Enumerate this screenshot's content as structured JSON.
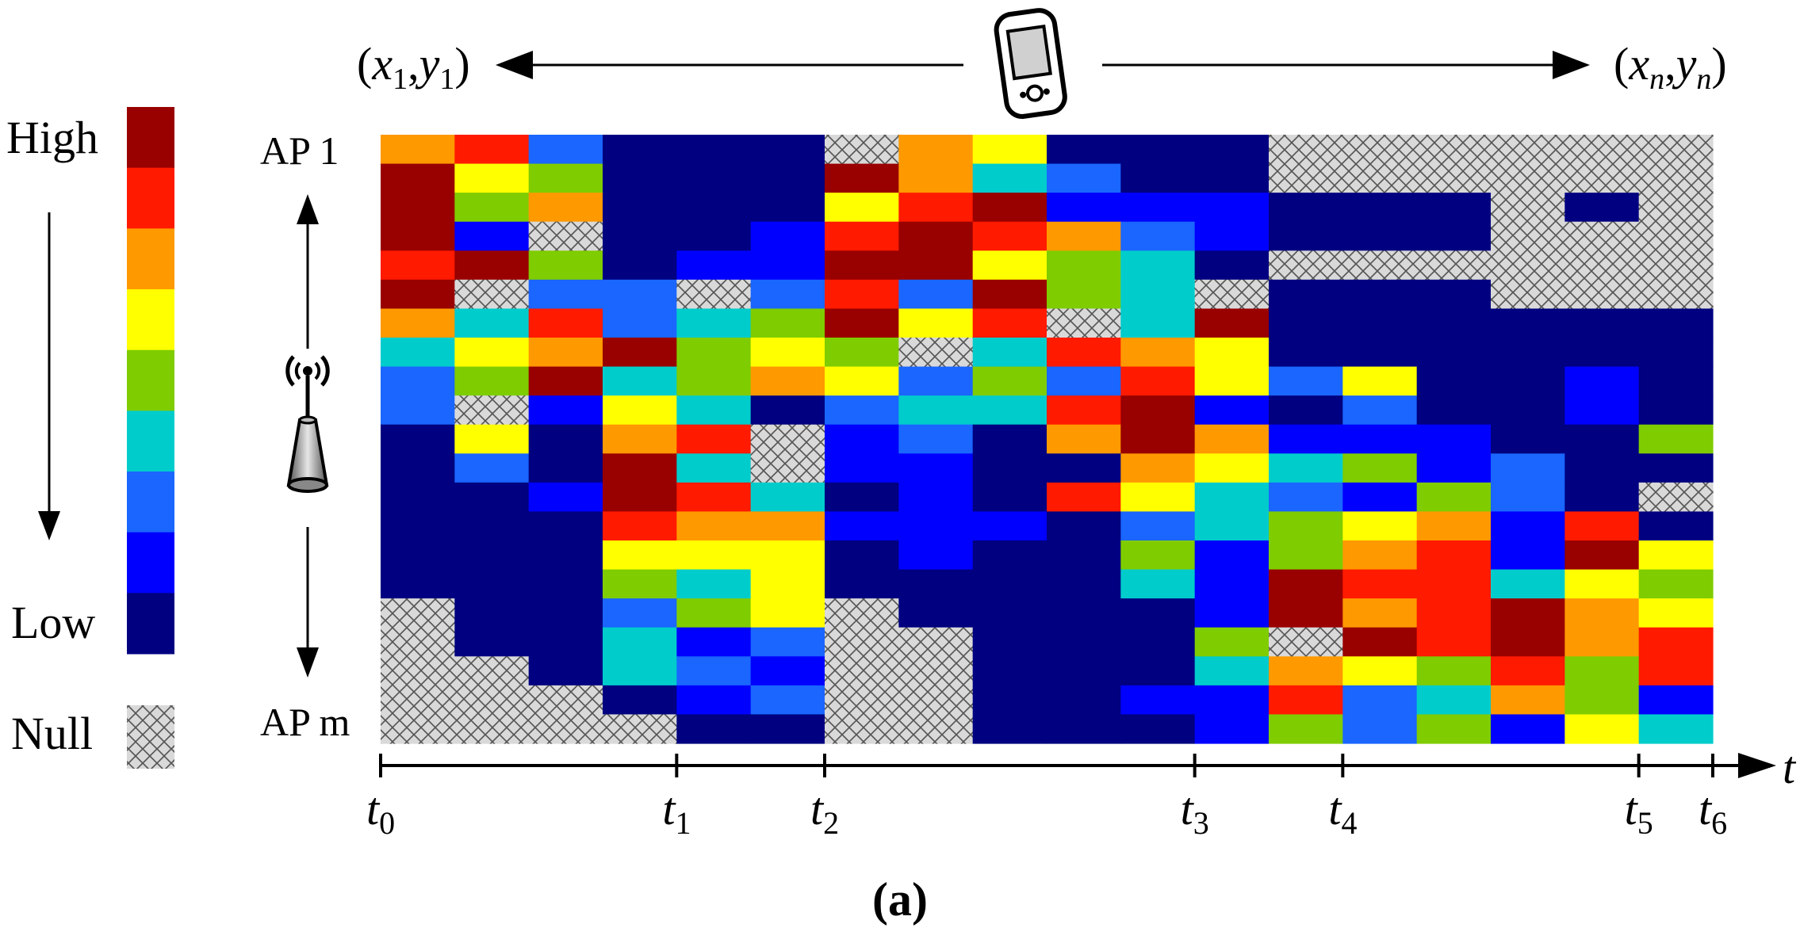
{
  "legend": {
    "high_label": "High",
    "low_label": "Low",
    "null_label": "Null",
    "scale_colors": [
      "#990000",
      "#ff1a00",
      "#ff9900",
      "#ffff00",
      "#7fcc00",
      "#00cccc",
      "#1a66ff",
      "#0000ff",
      "#000080"
    ]
  },
  "header": {
    "start_coord": "(x1,y1)",
    "end_coord": "(xn,yn)",
    "device_icon": "smartphone-icon"
  },
  "axis_labels": {
    "ap_top": "AP 1",
    "ap_bottom": "AP m",
    "antenna_icon": "antenna-icon",
    "time_axis": "t"
  },
  "time_ticks": [
    {
      "base": "t",
      "sub": "0",
      "column": 0
    },
    {
      "base": "t",
      "sub": "1",
      "column": 4
    },
    {
      "base": "t",
      "sub": "2",
      "column": 6
    },
    {
      "base": "t",
      "sub": "3",
      "column": 11
    },
    {
      "base": "t",
      "sub": "4",
      "column": 13
    },
    {
      "base": "t",
      "sub": "5",
      "column": 17
    },
    {
      "base": "t",
      "sub": "6",
      "column": 18
    }
  ],
  "caption": "(a)",
  "chart_data": {
    "type": "heatmap",
    "levels_note": "9 = High ... 1 = Low, 0 = Null",
    "rows": 21,
    "columns": 18,
    "grid": [
      "783111076111000000",
      "965111974311000000",
      "957111689222111010",
      "920112898732111000",
      "895122996541000000",
      "903303839540111000",
      "748345968049111111",
      "467956504876111111",
      "359457635386361121",
      "302641344892131121",
      "161780231797222115",
      "131940221176452311",
      "112984121864325310",
      "111877222134567281",
      "111666121152578296",
      "111546111142988465",
      "011356011112978976",
      "011423001115098978",
      "001432001114765858",
      "000123001122834752",
      "000011001112535264"
    ]
  }
}
